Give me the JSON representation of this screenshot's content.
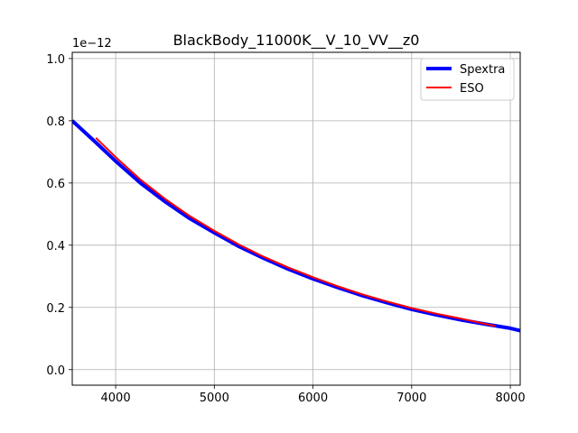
{
  "chart_data": {
    "type": "line",
    "title": "BlackBody_11000K__V_10_VV__z0",
    "xlabel": "",
    "ylabel": "",
    "y_offset_label": "1e−12",
    "xlim": [
      3560,
      8100
    ],
    "ylim": [
      -0.05,
      1.02
    ],
    "x_ticks": [
      4000,
      5000,
      6000,
      7000,
      8000
    ],
    "x_tick_labels": [
      "4000",
      "5000",
      "6000",
      "7000",
      "8000"
    ],
    "y_ticks": [
      0.0,
      0.2,
      0.4,
      0.6,
      0.8,
      1.0
    ],
    "y_tick_labels": [
      "0.0",
      "0.2",
      "0.4",
      "0.6",
      "0.8",
      "1.0"
    ],
    "grid": true,
    "legend_position": "top-right",
    "series": [
      {
        "name": "Spextra",
        "color": "#0000ff",
        "x": [
          3560,
          3800,
          4000,
          4250,
          4500,
          4750,
          5000,
          5250,
          5500,
          5750,
          6000,
          6250,
          6500,
          6750,
          7000,
          7250,
          7500,
          7750,
          8000,
          8100
        ],
        "y": [
          0.8,
          0.73,
          0.67,
          0.6,
          0.54,
          0.486,
          0.44,
          0.396,
          0.358,
          0.323,
          0.292,
          0.264,
          0.238,
          0.215,
          0.194,
          0.176,
          0.16,
          0.146,
          0.133,
          0.125
        ]
      },
      {
        "name": "ESO",
        "color": "#ff0000",
        "x": [
          3800,
          4000,
          4250,
          4500,
          4750,
          5000,
          5250,
          5500,
          5750,
          6000,
          6250,
          6500,
          6750,
          7000,
          7250,
          7500,
          7850
        ],
        "y": [
          0.745,
          0.683,
          0.611,
          0.549,
          0.494,
          0.446,
          0.402,
          0.363,
          0.328,
          0.297,
          0.268,
          0.242,
          0.219,
          0.198,
          0.18,
          0.164,
          0.14
        ]
      }
    ]
  }
}
